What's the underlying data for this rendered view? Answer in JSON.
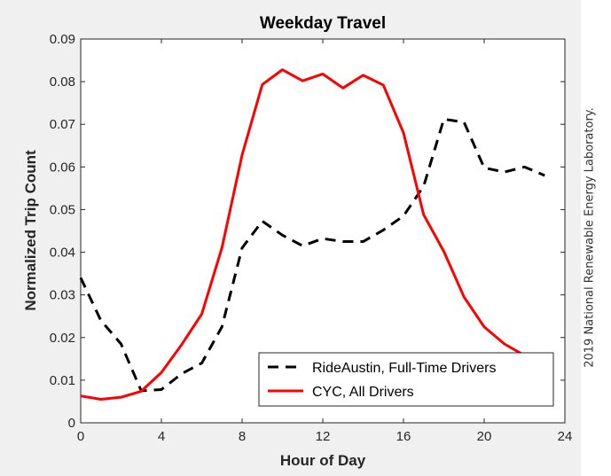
{
  "copyright": "2019 National Renewable Energy Laboratory.",
  "chart_data": {
    "type": "line",
    "title": "Weekday Travel",
    "xlabel": "Hour of Day",
    "ylabel": "Normalized Trip Count",
    "xlim": [
      0,
      24
    ],
    "ylim": [
      0,
      0.09
    ],
    "xticks": [
      0,
      4,
      8,
      12,
      16,
      20,
      24
    ],
    "yticks": [
      0,
      0.01,
      0.02,
      0.03,
      0.04,
      0.05,
      0.06,
      0.07,
      0.08,
      0.09
    ],
    "xtick_labels": [
      "0",
      "4",
      "8",
      "12",
      "16",
      "20",
      "24"
    ],
    "ytick_labels": [
      "0",
      "0.01",
      "0.02",
      "0.03",
      "0.04",
      "0.05",
      "0.06",
      "0.07",
      "0.08",
      "0.09"
    ],
    "grid": false,
    "legend": "bottom-right",
    "series": [
      {
        "name": "RideAustin, Full-Time Drivers",
        "color": "#000000",
        "style": "dashed",
        "x": [
          0,
          1,
          2,
          3,
          4,
          5,
          6,
          7,
          8,
          9,
          10,
          11,
          12,
          13,
          14,
          15,
          16,
          17,
          18,
          19,
          20,
          21,
          22,
          23
        ],
        "y": [
          0.034,
          0.024,
          0.0185,
          0.0075,
          0.0078,
          0.0115,
          0.014,
          0.0225,
          0.041,
          0.0473,
          0.044,
          0.0415,
          0.0432,
          0.0425,
          0.0425,
          0.0452,
          0.0485,
          0.0555,
          0.0712,
          0.0705,
          0.0598,
          0.0588,
          0.06,
          0.058
        ]
      },
      {
        "name": "CYC, All Drivers",
        "color": "#ff0000",
        "style": "solid",
        "x": [
          0,
          1,
          2,
          3,
          4,
          5,
          6,
          7,
          8,
          9,
          10,
          11,
          12,
          13,
          14,
          15,
          16,
          17,
          18,
          19,
          20,
          21,
          22
        ],
        "y": [
          0.0063,
          0.0055,
          0.006,
          0.0074,
          0.0118,
          0.0183,
          0.0255,
          0.041,
          0.0628,
          0.0793,
          0.0828,
          0.0802,
          0.0818,
          0.0785,
          0.0815,
          0.0792,
          0.068,
          0.0488,
          0.0402,
          0.0295,
          0.0225,
          0.0185,
          0.0158
        ]
      }
    ]
  }
}
